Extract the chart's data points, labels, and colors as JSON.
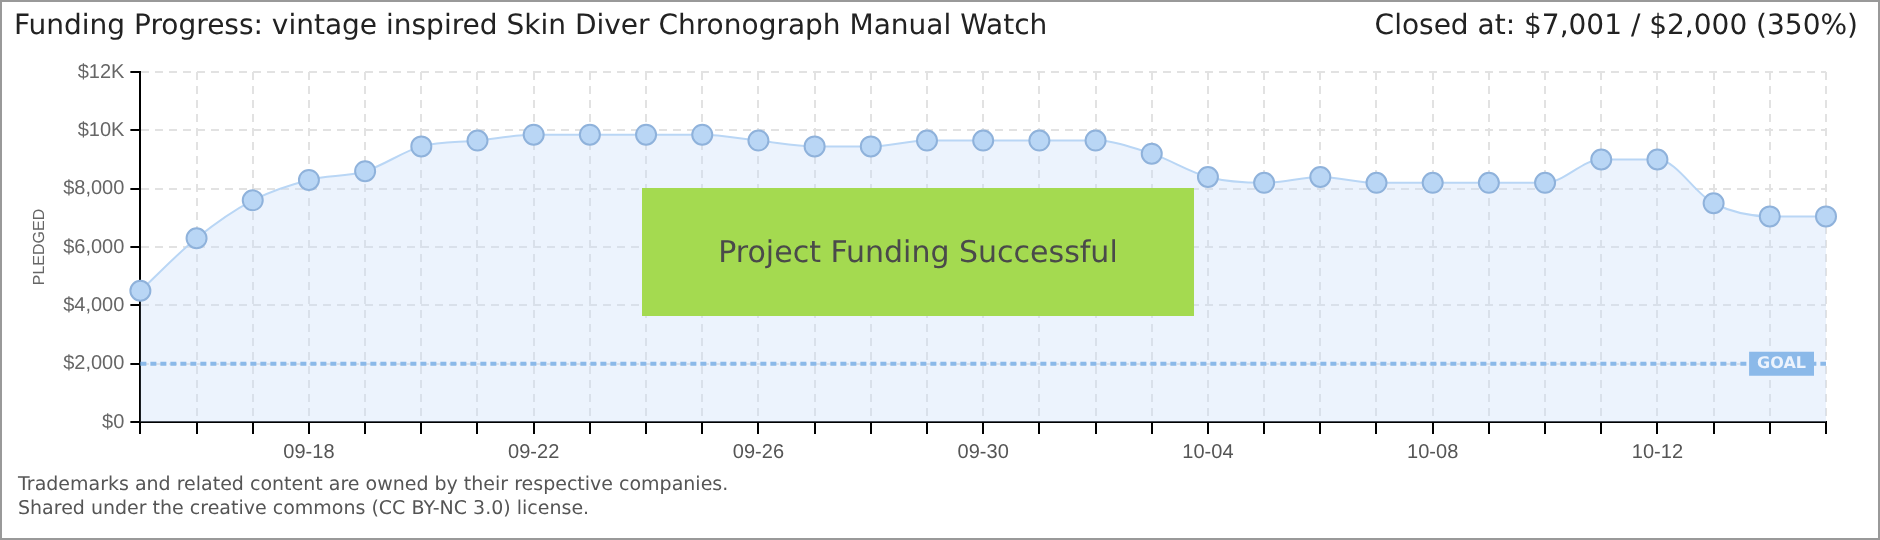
{
  "chart_data": {
    "type": "area",
    "title": "Funding Progress: vintage inspired Skin Diver Chronograph Manual Watch",
    "subtitle": "Closed at: $7,001 / $2,000 (350%)",
    "ylabel": "PLEDGED",
    "categories": [
      null,
      null,
      null,
      "09-18",
      null,
      null,
      null,
      "09-22",
      null,
      null,
      null,
      "09-26",
      null,
      null,
      null,
      "09-30",
      null,
      null,
      null,
      "10-04",
      null,
      null,
      null,
      "10-08",
      null,
      null,
      null,
      "10-12",
      null,
      null,
      null
    ],
    "series": [
      {
        "color": "#b9d6f5",
        "values": [
          4500,
          6300,
          7600,
          8300,
          8600,
          9450,
          9650,
          9850,
          9850,
          9850,
          9850,
          9650,
          9450,
          9450,
          9650,
          9650,
          9650,
          9650,
          9200,
          8400,
          8200,
          8400,
          8200,
          8200,
          8200,
          8200,
          9000,
          9000,
          7500,
          7050,
          7050
        ]
      }
    ],
    "ylim": [
      0,
      12000
    ],
    "yticks": [
      {
        "value": 0,
        "label": "$0"
      },
      {
        "value": 2000,
        "label": "$2,000"
      },
      {
        "value": 4000,
        "label": "$4,000"
      },
      {
        "value": 6000,
        "label": "$6,000"
      },
      {
        "value": 8000,
        "label": "$8,000"
      },
      {
        "value": 10000,
        "label": "$10K"
      },
      {
        "value": 12000,
        "label": "$12K"
      }
    ],
    "ref_lines": [
      {
        "axis": "y",
        "value": 2000,
        "label": "GOAL",
        "color": "#6aa6e0",
        "line_style": "dotted"
      }
    ],
    "annotations": [
      "Project Funding Successful",
      "Trademarks and related content are owned by their respective companies.",
      "Shared under the creative commons (CC BY-NC 3.0) license."
    ],
    "grid": true,
    "legend": false,
    "marker": "circle",
    "line_style": "solid"
  }
}
